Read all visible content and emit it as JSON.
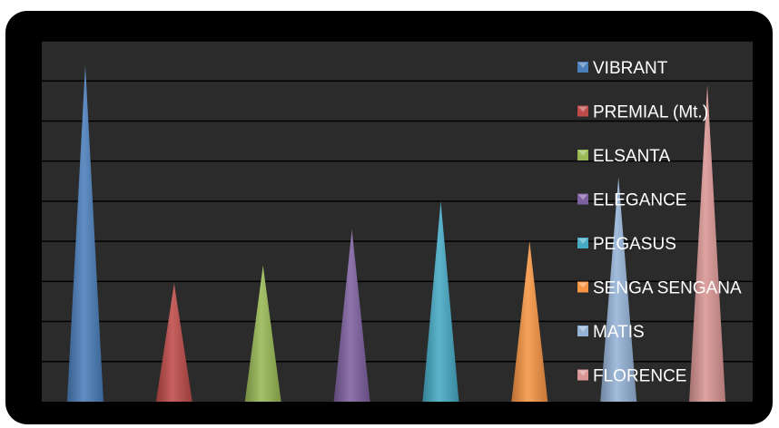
{
  "chart_data": {
    "type": "bar",
    "bar_shape": "cone",
    "categories": [
      "VIBRANT",
      "PREMIAL (Mt.)",
      "ELSANTA",
      "ELEGANCE",
      "PEGASUS",
      "SENGA SENGANA",
      "MATIS",
      "FLORENCE"
    ],
    "values": [
      8.4,
      2.95,
      3.4,
      4.3,
      5.0,
      4.0,
      5.6,
      7.9
    ],
    "ylim": [
      0,
      9
    ],
    "y_gridlines": [
      1,
      2,
      3,
      4,
      5,
      6,
      7,
      8,
      9
    ],
    "grid": true,
    "tick_labels_visible": false,
    "legend": {
      "position": "right",
      "entries": [
        "VIBRANT",
        "PREMIAL (Mt.)",
        "ELSANTA",
        "ELEGANCE",
        "PEGASUS",
        "SENGA SENGANA",
        "MATIS",
        "FLORENCE"
      ]
    },
    "colors": [
      "#4a7ebb",
      "#be4b48",
      "#98b954",
      "#7d60a0",
      "#46aac5",
      "#f69544",
      "#95b3d7",
      "#d99694"
    ],
    "background": "#000000",
    "plot_background": "#2b2b2b",
    "gridline_color": "#000000",
    "legend_text_color": "#ffffff"
  }
}
